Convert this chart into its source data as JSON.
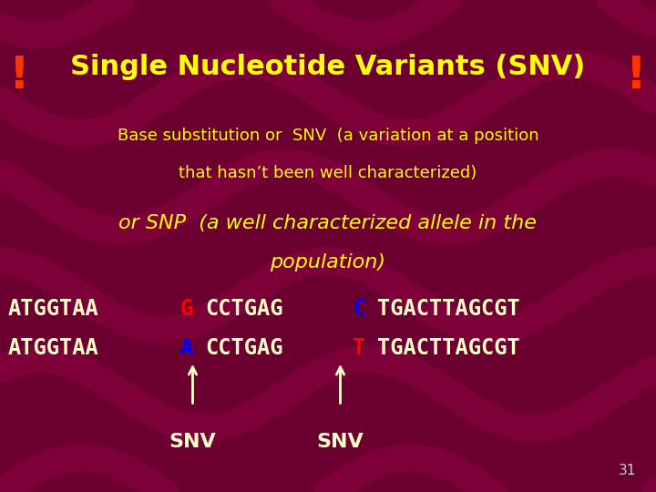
{
  "background_color": "#6B0030",
  "title": "Single Nucleotide Variants (SNV)",
  "title_color": "#FFFF00",
  "title_fontsize": 22,
  "subtitle1": "Base substitution or  SNV  (a variation at a position",
  "subtitle2": "that hasn’t been well characterized)",
  "subtitle_color": "#FFFF00",
  "subtitle_fontsize": 13,
  "snp_line1": "or SNP  (a well characterized allele in the",
  "snp_line2": "population)",
  "snp_color": "#FFFF00",
  "snp_fontsize": 16,
  "exclaim_color": "#FF3300",
  "exclaim_fontsize": 36,
  "seq_color_white": "#FFFFCC",
  "seq_color_red": "#FF0000",
  "seq_color_blue": "#0000FF",
  "seq_fontsize": 17,
  "arrow_color": "#FFFFCC",
  "snv_label_color": "#FFFFCC",
  "snv_label_fontsize": 16,
  "page_num": "31",
  "page_num_color": "#CCCCCC",
  "page_num_fontsize": 11,
  "wave_color": "#8B0040",
  "wave_alpha": 0.6
}
